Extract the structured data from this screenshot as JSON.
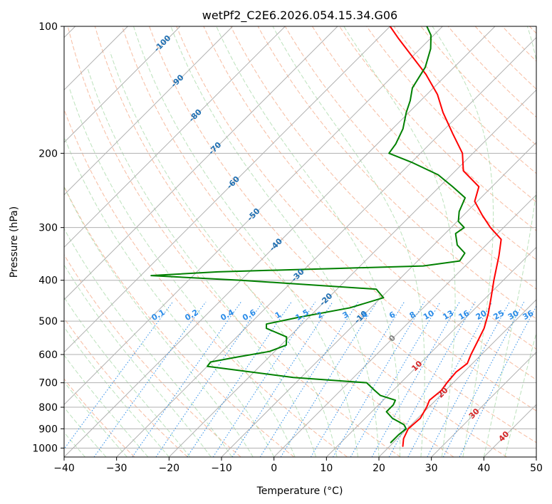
{
  "chart_data": {
    "type": "line",
    "title": "wetPf2_C2E6.2026.054.15.34.G06",
    "xlabel": "Temperature (°C)",
    "ylabel": "Pressure (hPa)",
    "xlim": [
      -40,
      50
    ],
    "ylim": [
      1050,
      100
    ],
    "y_scale": "log",
    "grid": true,
    "x_ticks": [
      "−40",
      "−30",
      "−20",
      "−10",
      "0",
      "10",
      "20",
      "30",
      "40",
      "50"
    ],
    "x_tick_values": [
      -40,
      -30,
      -20,
      -10,
      0,
      10,
      20,
      30,
      40,
      50
    ],
    "y_ticks": [
      "100",
      "200",
      "300",
      "400",
      "500",
      "600",
      "700",
      "800",
      "900",
      "1000"
    ],
    "y_tick_values": [
      100,
      200,
      300,
      400,
      500,
      600,
      700,
      800,
      900,
      1000
    ],
    "isotherm_labels": [
      {
        "text": "-100",
        "t": -100,
        "p": 110
      },
      {
        "text": "-90",
        "t": -90,
        "p": 135
      },
      {
        "text": "-80",
        "t": -80,
        "p": 163
      },
      {
        "text": "-70",
        "t": -70,
        "p": 195
      },
      {
        "text": "-60",
        "t": -60,
        "p": 235
      },
      {
        "text": "-50",
        "t": -50,
        "p": 280
      },
      {
        "text": "-40",
        "t": -40,
        "p": 330
      },
      {
        "text": "-30",
        "t": -30,
        "p": 390
      },
      {
        "text": "-20",
        "t": -20,
        "p": 445
      },
      {
        "text": "-10",
        "t": -10,
        "p": 490
      },
      {
        "text": "0",
        "t": 0,
        "p": 550
      },
      {
        "text": "10",
        "t": 10,
        "p": 640
      },
      {
        "text": "20",
        "t": 20,
        "p": 740
      },
      {
        "text": "30",
        "t": 30,
        "p": 830
      },
      {
        "text": "40",
        "t": 40,
        "p": 940
      }
    ],
    "mixing_ratio_labels": [
      "0.1",
      "0.2",
      "0.4",
      "0.6",
      "1",
      "1.5",
      "2",
      "3",
      "4",
      "6",
      "8",
      "10",
      "13",
      "16",
      "20",
      "25",
      "30",
      "36"
    ],
    "mixing_ratio_values": [
      0.1,
      0.2,
      0.4,
      0.6,
      1,
      1.5,
      2,
      3,
      4,
      6,
      8,
      10,
      13,
      16,
      20,
      25,
      30,
      36
    ],
    "mixing_ratio_label_p": 500,
    "series": [
      {
        "color": "#ff0000",
        "points": [
          [
            22.5,
            990
          ],
          [
            21.2,
            950
          ],
          [
            20.2,
            900
          ],
          [
            20.5,
            850
          ],
          [
            19.6,
            800
          ],
          [
            18.8,
            770
          ],
          [
            19.2,
            730
          ],
          [
            18.8,
            700
          ],
          [
            18.5,
            660
          ],
          [
            19.0,
            630
          ],
          [
            18.0,
            600
          ],
          [
            16.8,
            560
          ],
          [
            15.5,
            520
          ],
          [
            13.5,
            480
          ],
          [
            11.0,
            440
          ],
          [
            8.2,
            400
          ],
          [
            4.5,
            350
          ],
          [
            1.8,
            320
          ],
          [
            -2.5,
            300
          ],
          [
            -6.5,
            280
          ],
          [
            -10.5,
            260
          ],
          [
            -12.5,
            240
          ],
          [
            -18.5,
            220
          ],
          [
            -22.0,
            200
          ],
          [
            -27.5,
            180
          ],
          [
            -33.5,
            160
          ],
          [
            -38.0,
            145
          ],
          [
            -44.0,
            130
          ],
          [
            -50.5,
            117
          ],
          [
            -56.0,
            107
          ],
          [
            -60.0,
            100
          ]
        ]
      },
      {
        "color": "#008000",
        "points": [
          [
            19.5,
            970
          ],
          [
            19.5,
            930
          ],
          [
            19.8,
            900
          ],
          [
            18.6,
            880
          ],
          [
            15.2,
            850
          ],
          [
            12.8,
            820
          ],
          [
            12.8,
            790
          ],
          [
            12.3,
            770
          ],
          [
            8.5,
            750
          ],
          [
            6.5,
            730
          ],
          [
            3.5,
            700
          ],
          [
            -11.5,
            680
          ],
          [
            -30.0,
            640
          ],
          [
            -30.2,
            625
          ],
          [
            -26.5,
            610
          ],
          [
            -21.0,
            590
          ],
          [
            -19.0,
            570
          ],
          [
            -20.5,
            545
          ],
          [
            -26.0,
            520
          ],
          [
            -26.8,
            508
          ],
          [
            -22.0,
            490
          ],
          [
            -14.0,
            465
          ],
          [
            -9.5,
            440
          ],
          [
            -12.5,
            420
          ],
          [
            -40.0,
            400
          ],
          [
            -58.0,
            390
          ],
          [
            -46.0,
            382
          ],
          [
            -24.0,
            375
          ],
          [
            -8.0,
            370
          ],
          [
            -2.0,
            360
          ],
          [
            -2.5,
            345
          ],
          [
            -5.5,
            330
          ],
          [
            -8.0,
            310
          ],
          [
            -7.5,
            300
          ],
          [
            -9.8,
            290
          ],
          [
            -11.5,
            275
          ],
          [
            -13.0,
            255
          ],
          [
            -17.5,
            240
          ],
          [
            -22.5,
            225
          ],
          [
            -30.0,
            210
          ],
          [
            -36.0,
            200
          ],
          [
            -36.5,
            190
          ],
          [
            -38.0,
            175
          ],
          [
            -40.5,
            160
          ],
          [
            -42.0,
            150
          ],
          [
            -44.0,
            140
          ],
          [
            -45.5,
            125
          ],
          [
            -48.0,
            113
          ],
          [
            -50.5,
            105
          ],
          [
            -53.0,
            100
          ]
        ]
      }
    ]
  }
}
